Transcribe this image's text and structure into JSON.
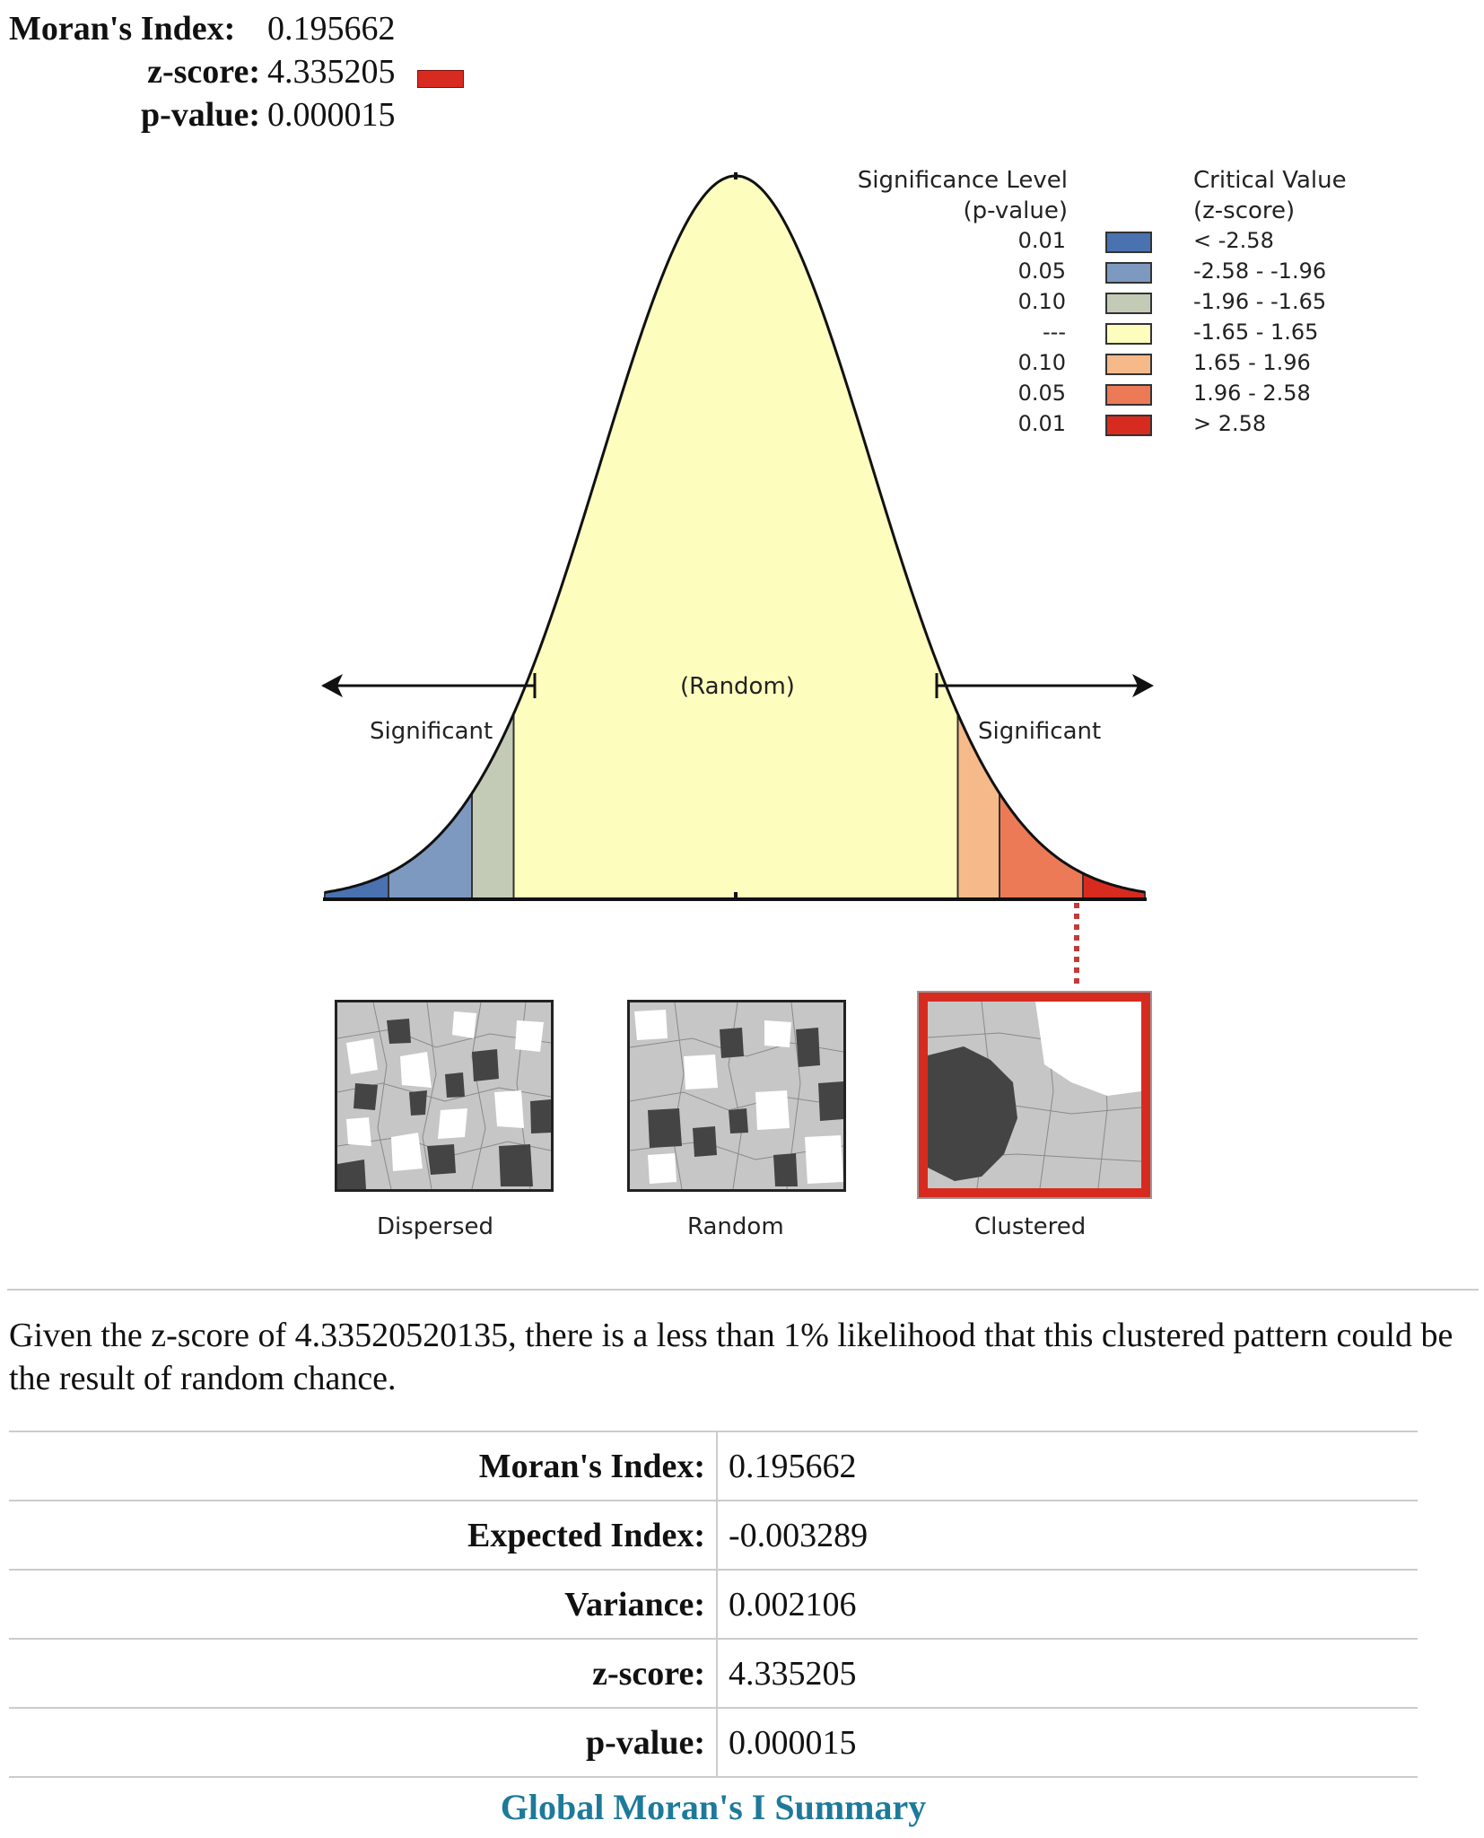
{
  "header": {
    "moran_label": "Moran's Index:",
    "moran_value": "0.195662",
    "z_label": "z-score:",
    "z_value": "4.335205",
    "p_label": "p-value:",
    "p_value": "0.000015"
  },
  "graphic": {
    "significance_header": [
      "Significance Level",
      "(p-value)"
    ],
    "critical_header": [
      "Critical Value",
      "(z-score)"
    ],
    "legend": [
      {
        "p": "0.01",
        "z": "< -2.58",
        "color": "#4a72b0"
      },
      {
        "p": "0.05",
        "z": "-2.58 - -1.96",
        "color": "#7d99bf"
      },
      {
        "p": "0.10",
        "z": "-1.96 - -1.65",
        "color": "#c3cbb7"
      },
      {
        "p": "---",
        "z": "-1.65 - 1.65",
        "color": "#fdfdbd"
      },
      {
        "p": "0.10",
        "z": "1.65 - 1.96",
        "color": "#f6b98a"
      },
      {
        "p": "0.05",
        "z": "1.96 - 2.58",
        "color": "#ec7a57"
      },
      {
        "p": "0.01",
        "z": "> 2.58",
        "color": "#d72b20"
      }
    ],
    "label_random": "(Random)",
    "label_sig_left": "Significant",
    "label_sig_right": "Significant",
    "thumb_labels": {
      "dispersed": "Dispersed",
      "random": "Random",
      "clustered": "Clustered"
    },
    "selected_pattern": "Clustered"
  },
  "conclusion": "Given the z-score of 4.33520520135, there is a less than 1% likelihood that this clustered pattern could be the result of random chance.",
  "summary": {
    "rows": [
      {
        "label": "Moran's Index:",
        "value": "0.195662"
      },
      {
        "label": "Expected Index:",
        "value": "-0.003289"
      },
      {
        "label": "Variance:",
        "value": "0.002106"
      },
      {
        "label": "z-score:",
        "value": "4.335205"
      },
      {
        "label": "p-value:",
        "value": "0.000015"
      }
    ],
    "caption": "Global Moran's I Summary"
  }
}
